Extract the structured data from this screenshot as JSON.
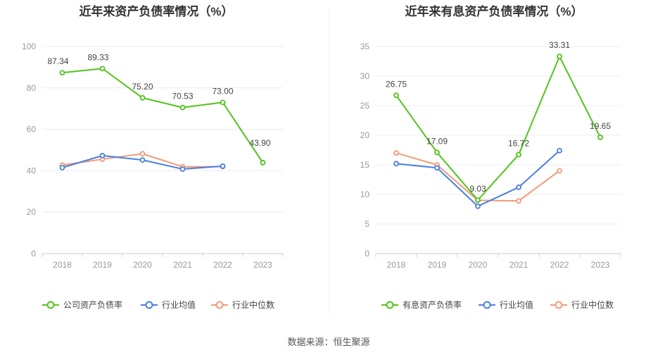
{
  "source": "数据来源：恒生聚源",
  "chart_data": [
    {
      "type": "line",
      "title": "近年来资产负债率情况（%）",
      "categories": [
        "2018",
        "2019",
        "2020",
        "2021",
        "2022",
        "2023"
      ],
      "ylim": [
        0,
        100
      ],
      "yticks": [
        0,
        20,
        40,
        60,
        80,
        100
      ],
      "grid": true,
      "legend_position": "bottom",
      "series": [
        {
          "name": "公司资产负债率",
          "color": "#52c41a",
          "values": [
            87.34,
            89.33,
            75.2,
            70.53,
            73.0,
            43.9
          ],
          "labels": [
            "87.34",
            "89.33",
            "75.20",
            "70.53",
            "73.00",
            "43.90"
          ]
        },
        {
          "name": "行业均值",
          "color": "#4a7fe0",
          "values": [
            41.5,
            47.3,
            45.2,
            40.8,
            42.2,
            null
          ],
          "labels": null
        },
        {
          "name": "行业中位数",
          "color": "#f29b76",
          "values": [
            42.7,
            45.6,
            48.2,
            41.9,
            42.0,
            null
          ],
          "labels": null
        }
      ]
    },
    {
      "type": "line",
      "title": "近年来有息资产负债率情况（%）",
      "categories": [
        "2018",
        "2019",
        "2020",
        "2021",
        "2022",
        "2023"
      ],
      "ylim": [
        0,
        35
      ],
      "yticks": [
        0,
        5,
        10,
        15,
        20,
        25,
        30,
        35
      ],
      "grid": true,
      "legend_position": "bottom",
      "series": [
        {
          "name": "有息资产负债率",
          "color": "#52c41a",
          "values": [
            26.75,
            17.09,
            9.03,
            16.72,
            33.31,
            19.65
          ],
          "labels": [
            "26.75",
            "17.09",
            "9.03",
            "16.72",
            "33.31",
            "19.65"
          ]
        },
        {
          "name": "行业均值",
          "color": "#4a7fe0",
          "values": [
            15.2,
            14.5,
            8.0,
            11.2,
            17.4,
            null
          ],
          "labels": null
        },
        {
          "name": "行业中位数",
          "color": "#f29b76",
          "values": [
            17.0,
            15.0,
            9.0,
            8.9,
            14.0,
            null
          ],
          "labels": null
        }
      ]
    }
  ]
}
